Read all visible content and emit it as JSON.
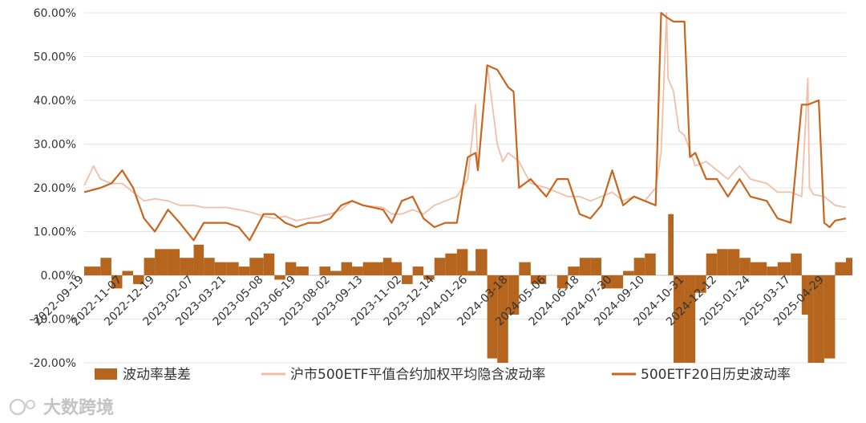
{
  "chart_data": {
    "type": "line",
    "title": "",
    "xlabel": "",
    "ylabel": "",
    "ylim": [
      -0.2,
      0.6
    ],
    "y_ticks": [
      {
        "value": 0.6,
        "label": "60.00%"
      },
      {
        "value": 0.5,
        "label": "50.00%"
      },
      {
        "value": 0.4,
        "label": "40.00%"
      },
      {
        "value": 0.3,
        "label": "30.00%"
      },
      {
        "value": 0.2,
        "label": "20.00%"
      },
      {
        "value": 0.1,
        "label": "10.00%"
      },
      {
        "value": 0.0,
        "label": "0.00%"
      },
      {
        "value": -0.1,
        "label": "-10.00%"
      },
      {
        "value": -0.2,
        "label": "-20.00%"
      }
    ],
    "x_ticks": [
      "2022-09-19",
      "2022-11-07",
      "2022-12-19",
      "2023-02-07",
      "2023-03-21",
      "2023-05-08",
      "2023-06-19",
      "2023-08-02",
      "2023-09-13",
      "2023-11-02",
      "2023-12-14",
      "2024-01-26",
      "2024-03-18",
      "2024-05-06",
      "2024-06-18",
      "2024-07-30",
      "2024-09-10",
      "2024-10-31",
      "2024-12-12",
      "2025-01-24",
      "2025-03-17",
      "2025-04-29"
    ],
    "grid": "horizontal",
    "legend_position": "bottom",
    "series": [
      {
        "name": "波动率基差",
        "kind": "area",
        "color": "#b5651d",
        "x": [
          "2022-09-19",
          "2022-10-10",
          "2022-10-24",
          "2022-11-07",
          "2022-11-21",
          "2022-12-05",
          "2022-12-19",
          "2023-01-05",
          "2023-01-20",
          "2023-02-07",
          "2023-02-20",
          "2023-03-06",
          "2023-03-21",
          "2023-04-06",
          "2023-04-20",
          "2023-05-08",
          "2023-05-22",
          "2023-06-05",
          "2023-06-19",
          "2023-07-05",
          "2023-07-19",
          "2023-08-02",
          "2023-08-16",
          "2023-08-30",
          "2023-09-13",
          "2023-10-09",
          "2023-10-20",
          "2023-11-02",
          "2023-11-16",
          "2023-11-30",
          "2023-12-14",
          "2023-12-28",
          "2024-01-12",
          "2024-01-26",
          "2024-02-05",
          "2024-02-20",
          "2024-03-04",
          "2024-03-18",
          "2024-04-01",
          "2024-04-16",
          "2024-05-06",
          "2024-05-20",
          "2024-06-03",
          "2024-06-18",
          "2024-07-02",
          "2024-07-16",
          "2024-07-30",
          "2024-08-13",
          "2024-08-27",
          "2024-09-10",
          "2024-09-24",
          "2024-10-10",
          "2024-10-17",
          "2024-10-31",
          "2024-11-14",
          "2024-11-28",
          "2024-12-12",
          "2024-12-26",
          "2025-01-10",
          "2025-01-24",
          "2025-02-14",
          "2025-02-28",
          "2025-03-17",
          "2025-03-31",
          "2025-04-08",
          "2025-04-15",
          "2025-04-29",
          "2025-05-13",
          "2025-05-27"
        ],
        "values": [
          0.02,
          0.04,
          -0.03,
          0.01,
          -0.02,
          0.04,
          0.06,
          0.06,
          0.04,
          0.07,
          0.04,
          0.03,
          0.03,
          0.02,
          0.04,
          0.05,
          -0.01,
          0.03,
          0.02,
          0.0,
          0.02,
          0.01,
          0.03,
          0.02,
          0.03,
          0.04,
          0.03,
          -0.02,
          0.02,
          -0.01,
          0.04,
          0.05,
          0.06,
          0.01,
          0.06,
          -0.19,
          -0.2,
          -0.09,
          0.03,
          -0.02,
          0.0,
          -0.03,
          0.02,
          0.04,
          0.04,
          -0.03,
          -0.03,
          0.01,
          0.04,
          0.05,
          0.0,
          0.14,
          -0.2,
          -0.2,
          -0.04,
          0.05,
          0.06,
          0.06,
          0.04,
          0.03,
          0.02,
          0.03,
          0.05,
          -0.09,
          -0.2,
          -0.2,
          -0.19,
          0.03,
          0.04
        ]
      },
      {
        "name": "沪市500ETF平值合约加权平均隐含波动率",
        "kind": "line",
        "color": "#f2bfa6",
        "x": [
          "2022-09-19",
          "2022-10-01",
          "2022-10-10",
          "2022-10-24",
          "2022-11-07",
          "2022-11-21",
          "2022-12-05",
          "2022-12-19",
          "2023-01-05",
          "2023-01-20",
          "2023-02-07",
          "2023-02-20",
          "2023-03-06",
          "2023-03-21",
          "2023-04-06",
          "2023-04-20",
          "2023-05-08",
          "2023-05-22",
          "2023-06-05",
          "2023-06-19",
          "2023-07-05",
          "2023-07-19",
          "2023-08-02",
          "2023-08-16",
          "2023-08-30",
          "2023-09-13",
          "2023-10-09",
          "2023-10-20",
          "2023-11-02",
          "2023-11-16",
          "2023-11-30",
          "2023-12-14",
          "2023-12-28",
          "2024-01-12",
          "2024-01-26",
          "2024-02-05",
          "2024-02-08",
          "2024-02-20",
          "2024-03-04",
          "2024-03-11",
          "2024-03-18",
          "2024-04-01",
          "2024-04-16",
          "2024-05-06",
          "2024-05-20",
          "2024-06-03",
          "2024-06-18",
          "2024-07-02",
          "2024-07-16",
          "2024-07-30",
          "2024-08-13",
          "2024-08-27",
          "2024-09-10",
          "2024-09-24",
          "2024-10-01",
          "2024-10-08",
          "2024-10-10",
          "2024-10-17",
          "2024-10-24",
          "2024-10-31",
          "2024-11-14",
          "2024-11-28",
          "2024-12-12",
          "2024-12-26",
          "2025-01-10",
          "2025-01-24",
          "2025-02-14",
          "2025-02-28",
          "2025-03-17",
          "2025-03-31",
          "2025-04-08",
          "2025-04-10",
          "2025-04-15",
          "2025-04-29",
          "2025-05-13",
          "2025-05-27"
        ],
        "values": [
          0.205,
          0.25,
          0.22,
          0.21,
          0.21,
          0.19,
          0.17,
          0.175,
          0.17,
          0.16,
          0.16,
          0.155,
          0.155,
          0.155,
          0.15,
          0.145,
          0.135,
          0.13,
          0.135,
          0.125,
          0.13,
          0.135,
          0.14,
          0.15,
          0.17,
          0.16,
          0.155,
          0.14,
          0.14,
          0.15,
          0.14,
          0.16,
          0.17,
          0.18,
          0.22,
          0.39,
          0.24,
          0.48,
          0.3,
          0.26,
          0.28,
          0.26,
          0.21,
          0.2,
          0.19,
          0.18,
          0.18,
          0.17,
          0.18,
          0.19,
          0.17,
          0.18,
          0.17,
          0.2,
          0.28,
          0.6,
          0.45,
          0.42,
          0.33,
          0.32,
          0.25,
          0.26,
          0.24,
          0.22,
          0.25,
          0.22,
          0.21,
          0.19,
          0.19,
          0.18,
          0.45,
          0.2,
          0.185,
          0.18,
          0.16,
          0.155
        ]
      },
      {
        "name": "500ETF20日历史波动率",
        "kind": "line",
        "color": "#c8651e",
        "x": [
          "2022-09-19",
          "2022-10-10",
          "2022-10-24",
          "2022-11-07",
          "2022-11-21",
          "2022-12-05",
          "2022-12-19",
          "2023-01-05",
          "2023-01-20",
          "2023-02-07",
          "2023-02-20",
          "2023-03-06",
          "2023-03-21",
          "2023-04-06",
          "2023-04-20",
          "2023-05-08",
          "2023-05-22",
          "2023-06-05",
          "2023-06-19",
          "2023-07-05",
          "2023-07-19",
          "2023-08-02",
          "2023-08-16",
          "2023-08-30",
          "2023-09-13",
          "2023-10-09",
          "2023-10-20",
          "2023-11-02",
          "2023-11-16",
          "2023-11-30",
          "2023-12-14",
          "2023-12-28",
          "2024-01-12",
          "2024-01-26",
          "2024-02-05",
          "2024-02-08",
          "2024-02-20",
          "2024-03-04",
          "2024-03-18",
          "2024-03-25",
          "2024-04-01",
          "2024-04-16",
          "2024-05-06",
          "2024-05-20",
          "2024-06-03",
          "2024-06-18",
          "2024-07-02",
          "2024-07-16",
          "2024-07-30",
          "2024-08-13",
          "2024-08-27",
          "2024-09-10",
          "2024-09-24",
          "2024-10-01",
          "2024-10-08",
          "2024-10-17",
          "2024-10-31",
          "2024-11-07",
          "2024-11-14",
          "2024-11-28",
          "2024-12-12",
          "2024-12-26",
          "2025-01-10",
          "2025-01-24",
          "2025-02-14",
          "2025-02-28",
          "2025-03-17",
          "2025-03-31",
          "2025-04-03",
          "2025-04-08",
          "2025-04-15",
          "2025-04-22",
          "2025-04-29",
          "2025-05-06",
          "2025-05-13",
          "2025-05-27"
        ],
        "values": [
          0.19,
          0.2,
          0.21,
          0.24,
          0.2,
          0.13,
          0.1,
          0.15,
          0.12,
          0.08,
          0.12,
          0.12,
          0.12,
          0.11,
          0.08,
          0.14,
          0.14,
          0.12,
          0.11,
          0.12,
          0.12,
          0.13,
          0.16,
          0.17,
          0.16,
          0.15,
          0.12,
          0.17,
          0.18,
          0.13,
          0.11,
          0.12,
          0.12,
          0.27,
          0.28,
          0.24,
          0.48,
          0.47,
          0.43,
          0.42,
          0.2,
          0.22,
          0.18,
          0.22,
          0.22,
          0.14,
          0.13,
          0.16,
          0.24,
          0.16,
          0.18,
          0.17,
          0.16,
          0.6,
          0.59,
          0.58,
          0.58,
          0.27,
          0.28,
          0.22,
          0.22,
          0.18,
          0.22,
          0.18,
          0.17,
          0.13,
          0.12,
          0.39,
          0.39,
          0.39,
          0.395,
          0.4,
          0.12,
          0.11,
          0.125,
          0.13
        ]
      }
    ]
  },
  "watermark": {
    "text": "大数跨境"
  }
}
